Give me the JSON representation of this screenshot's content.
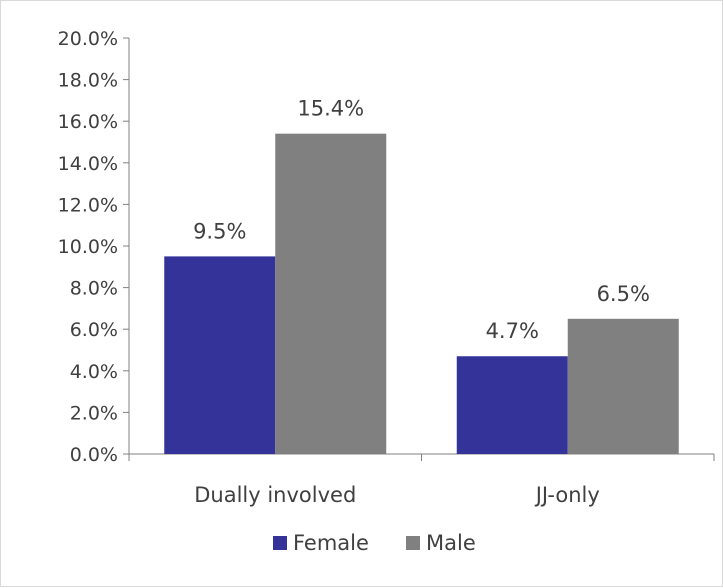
{
  "chart_data": {
    "type": "bar",
    "title": "",
    "xlabel": "",
    "ylabel": "",
    "categories": [
      "Dually involved",
      "JJ-only"
    ],
    "series": [
      {
        "name": "Female",
        "values": [
          9.5,
          4.7
        ],
        "labels": [
          "9.5%",
          "4.7%"
        ],
        "color": "#333399"
      },
      {
        "name": "Male",
        "values": [
          15.4,
          6.5
        ],
        "labels": [
          "15.4%",
          "6.5%"
        ],
        "color": "#808080"
      }
    ],
    "ylim": [
      0,
      20
    ],
    "y_ticks": [
      "0.0%",
      "2.0%",
      "4.0%",
      "6.0%",
      "8.0%",
      "10.0%",
      "12.0%",
      "14.0%",
      "16.0%",
      "18.0%",
      "20.0%"
    ],
    "grid": false,
    "legend_position": "bottom",
    "axis_color": "#808080"
  }
}
